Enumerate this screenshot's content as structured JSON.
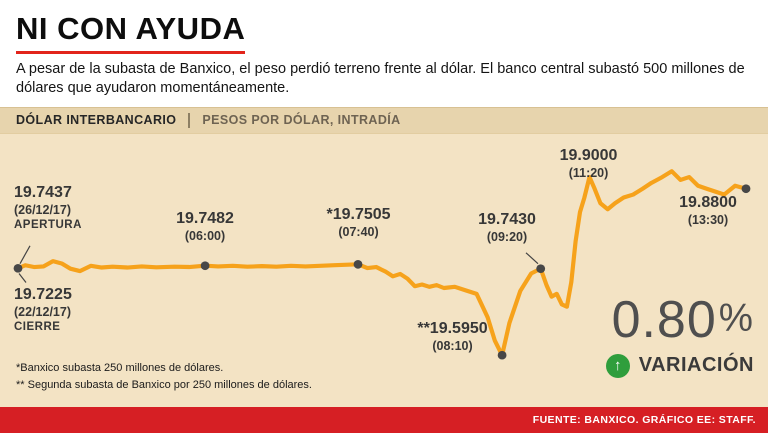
{
  "page": {
    "title": "NI CON AYUDA",
    "subtitle": "A pesar de la subasta de Banxico, el peso perdió terreno frente al dólar. El banco central subastó 500 millones de dólares que ayudaron momentáneamente.",
    "header": {
      "left": "DÓLAR INTERBANCARIO",
      "right": "PESOS POR DÓLAR, INTRADÍA"
    },
    "footnotes": [
      "*Banxico subasta 250 millones de dólares.",
      "** Segunda subasta de Banxico por 250 millones de dólares."
    ],
    "variation": {
      "value": "0.80",
      "percent_sign": "%",
      "label": "VARIACIÓN"
    },
    "source": "FUENTE: BANXICO. GRÁFICO EE: STAFF."
  },
  "colors": {
    "background_beige": "#f3e3c4",
    "band_beige": "#e7d4ad",
    "accent_red": "#e2241b",
    "source_bar_red": "#d61f24",
    "line_orange": "#f6a21b",
    "marker_dark": "#474747",
    "green": "#2f9e3c",
    "big_number_gray": "#4f4f4f"
  },
  "chart_data": {
    "type": "line",
    "title": "Dólar interbancario — pesos por dólar, intradía",
    "ylim": [
      19.55,
      19.95
    ],
    "legend": "off",
    "grid": "off",
    "key_points": [
      {
        "label": "apertura",
        "time": "26/12/17",
        "value": 19.7437
      },
      {
        "label": "cierre previo",
        "time": "22/12/17",
        "value": 19.7225
      },
      {
        "time": "06:00",
        "value": 19.7482
      },
      {
        "time": "07:40",
        "value": 19.7505
      },
      {
        "time": "08:10",
        "value": 19.595
      },
      {
        "time": "09:20",
        "value": 19.743
      },
      {
        "time": "11:20",
        "value": 19.9
      },
      {
        "time": "13:30",
        "value": 19.88
      }
    ],
    "annotations": [
      {
        "value": "19.7437",
        "time": "(26/12/17)",
        "label": "APERTURA"
      },
      {
        "value": "19.7225",
        "time": "(22/12/17)",
        "label": "CIERRE"
      },
      {
        "value": "19.7482",
        "time": "(06:00)"
      },
      {
        "value": "*19.7505",
        "time": "(07:40)"
      },
      {
        "value": "**19.5950",
        "time": "(08:10)"
      },
      {
        "value": "19.7430",
        "time": "(09:20)"
      },
      {
        "value": "19.9000",
        "time": "(11:20)"
      },
      {
        "value": "19.8800",
        "time": "(13:30)"
      }
    ],
    "points": [
      [
        0.0,
        19.7437
      ],
      [
        0.01,
        19.749
      ],
      [
        0.022,
        19.746
      ],
      [
        0.035,
        19.747
      ],
      [
        0.048,
        19.756
      ],
      [
        0.06,
        19.752
      ],
      [
        0.072,
        19.743
      ],
      [
        0.085,
        19.739
      ],
      [
        0.1,
        19.748
      ],
      [
        0.115,
        19.745
      ],
      [
        0.13,
        19.7465
      ],
      [
        0.15,
        19.745
      ],
      [
        0.17,
        19.747
      ],
      [
        0.19,
        19.7455
      ],
      [
        0.215,
        19.7465
      ],
      [
        0.235,
        19.746
      ],
      [
        0.257,
        19.7482
      ],
      [
        0.275,
        19.747
      ],
      [
        0.295,
        19.748
      ],
      [
        0.315,
        19.7465
      ],
      [
        0.335,
        19.7475
      ],
      [
        0.355,
        19.7465
      ],
      [
        0.375,
        19.748
      ],
      [
        0.395,
        19.747
      ],
      [
        0.415,
        19.748
      ],
      [
        0.435,
        19.749
      ],
      [
        0.467,
        19.7505
      ],
      [
        0.48,
        19.744
      ],
      [
        0.492,
        19.746
      ],
      [
        0.505,
        19.738
      ],
      [
        0.515,
        19.73
      ],
      [
        0.525,
        19.734
      ],
      [
        0.535,
        19.726
      ],
      [
        0.545,
        19.713
      ],
      [
        0.555,
        19.716
      ],
      [
        0.565,
        19.712
      ],
      [
        0.575,
        19.715
      ],
      [
        0.585,
        19.71
      ],
      [
        0.6,
        19.712
      ],
      [
        0.615,
        19.706
      ],
      [
        0.63,
        19.7
      ],
      [
        0.645,
        19.66
      ],
      [
        0.655,
        19.62
      ],
      [
        0.665,
        19.595
      ],
      [
        0.675,
        19.65
      ],
      [
        0.69,
        19.705
      ],
      [
        0.705,
        19.735
      ],
      [
        0.718,
        19.743
      ],
      [
        0.726,
        19.715
      ],
      [
        0.733,
        19.695
      ],
      [
        0.74,
        19.7
      ],
      [
        0.747,
        19.682
      ],
      [
        0.754,
        19.678
      ],
      [
        0.76,
        19.72
      ],
      [
        0.766,
        19.79
      ],
      [
        0.772,
        19.84
      ],
      [
        0.778,
        19.865
      ],
      [
        0.785,
        19.9
      ],
      [
        0.792,
        19.88
      ],
      [
        0.8,
        19.855
      ],
      [
        0.81,
        19.845
      ],
      [
        0.82,
        19.855
      ],
      [
        0.832,
        19.865
      ],
      [
        0.845,
        19.87
      ],
      [
        0.858,
        19.88
      ],
      [
        0.87,
        19.89
      ],
      [
        0.885,
        19.9
      ],
      [
        0.898,
        19.91
      ],
      [
        0.91,
        19.895
      ],
      [
        0.922,
        19.9
      ],
      [
        0.934,
        19.885
      ],
      [
        0.946,
        19.88
      ],
      [
        0.958,
        19.875
      ],
      [
        0.97,
        19.87
      ],
      [
        0.985,
        19.885
      ],
      [
        1.0,
        19.88
      ]
    ],
    "markers": [
      [
        0.0,
        19.7437
      ],
      [
        0.257,
        19.7482
      ],
      [
        0.467,
        19.7505
      ],
      [
        0.665,
        19.595
      ],
      [
        0.718,
        19.743
      ],
      [
        1.0,
        19.88
      ]
    ]
  }
}
